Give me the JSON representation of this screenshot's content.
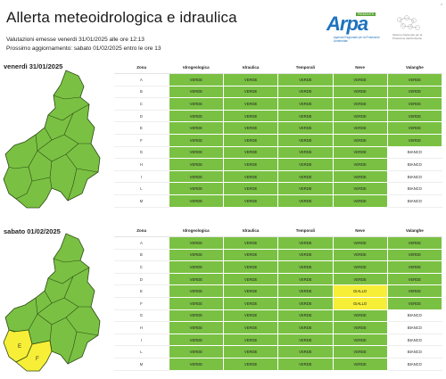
{
  "header": {
    "title": "Allerta meteoidrologica e idraulica",
    "issued": "Valutazioni emesse venerdì 31/01/2025 alle ore 12:13",
    "next_update": "Prossimo aggiornamento: sabato 01/02/2025 entro le ore 13"
  },
  "logo": {
    "arpa_word": "Arpa",
    "arpa_tag": "PIEMONTE",
    "arpa_caption": "Agenzia Regionale per la Protezione Ambientale",
    "partner_caption": "Sistema Nazionale per la Protezione dell'Ambiente"
  },
  "corner_mark": "x",
  "columns": [
    "Zona",
    "Idrogeologica",
    "Idraulica",
    "Temporali",
    "Neve",
    "Valanghe"
  ],
  "days": [
    {
      "label": "venerdì 31/01/2025",
      "rows": [
        {
          "zone": "A",
          "cells": [
            "VERDE",
            "VERDE",
            "VERDE",
            "VERDE",
            "VERDE"
          ]
        },
        {
          "zone": "B",
          "cells": [
            "VERDE",
            "VERDE",
            "VERDE",
            "VERDE",
            "VERDE"
          ]
        },
        {
          "zone": "C",
          "cells": [
            "VERDE",
            "VERDE",
            "VERDE",
            "VERDE",
            "VERDE"
          ]
        },
        {
          "zone": "D",
          "cells": [
            "VERDE",
            "VERDE",
            "VERDE",
            "VERDE",
            "VERDE"
          ]
        },
        {
          "zone": "E",
          "cells": [
            "VERDE",
            "VERDE",
            "VERDE",
            "VERDE",
            "VERDE"
          ]
        },
        {
          "zone": "F",
          "cells": [
            "VERDE",
            "VERDE",
            "VERDE",
            "VERDE",
            "VERDE"
          ]
        },
        {
          "zone": "G",
          "cells": [
            "VERDE",
            "VERDE",
            "VERDE",
            "VERDE",
            "BIANCO"
          ]
        },
        {
          "zone": "H",
          "cells": [
            "VERDE",
            "VERDE",
            "VERDE",
            "VERDE",
            "BIANCO"
          ]
        },
        {
          "zone": "I",
          "cells": [
            "VERDE",
            "VERDE",
            "VERDE",
            "VERDE",
            "BIANCO"
          ]
        },
        {
          "zone": "L",
          "cells": [
            "VERDE",
            "VERDE",
            "VERDE",
            "VERDE",
            "BIANCO"
          ]
        },
        {
          "zone": "M",
          "cells": [
            "VERDE",
            "VERDE",
            "VERDE",
            "VERDE",
            "BIANCO"
          ]
        }
      ]
    },
    {
      "label": "sabato 01/02/2025",
      "rows": [
        {
          "zone": "A",
          "cells": [
            "VERDE",
            "VERDE",
            "VERDE",
            "VERDE",
            "VERDE"
          ]
        },
        {
          "zone": "B",
          "cells": [
            "VERDE",
            "VERDE",
            "VERDE",
            "VERDE",
            "VERDE"
          ]
        },
        {
          "zone": "C",
          "cells": [
            "VERDE",
            "VERDE",
            "VERDE",
            "VERDE",
            "VERDE"
          ]
        },
        {
          "zone": "D",
          "cells": [
            "VERDE",
            "VERDE",
            "VERDE",
            "VERDE",
            "VERDE"
          ]
        },
        {
          "zone": "E",
          "cells": [
            "VERDE",
            "VERDE",
            "VERDE",
            "GIALLO",
            "VERDE"
          ]
        },
        {
          "zone": "F",
          "cells": [
            "VERDE",
            "VERDE",
            "VERDE",
            "GIALLO",
            "VERDE"
          ]
        },
        {
          "zone": "G",
          "cells": [
            "VERDE",
            "VERDE",
            "VERDE",
            "VERDE",
            "BIANCO"
          ]
        },
        {
          "zone": "H",
          "cells": [
            "VERDE",
            "VERDE",
            "VERDE",
            "VERDE",
            "BIANCO"
          ]
        },
        {
          "zone": "I",
          "cells": [
            "VERDE",
            "VERDE",
            "VERDE",
            "VERDE",
            "BIANCO"
          ]
        },
        {
          "zone": "L",
          "cells": [
            "VERDE",
            "VERDE",
            "VERDE",
            "VERDE",
            "BIANCO"
          ]
        },
        {
          "zone": "M",
          "cells": [
            "VERDE",
            "VERDE",
            "VERDE",
            "VERDE",
            "BIANCO"
          ]
        }
      ],
      "map_labels": [
        "E",
        "F"
      ]
    }
  ],
  "colors": {
    "verde": "#7ac143",
    "giallo": "#f7ee37",
    "bianco": "#ffffff"
  }
}
